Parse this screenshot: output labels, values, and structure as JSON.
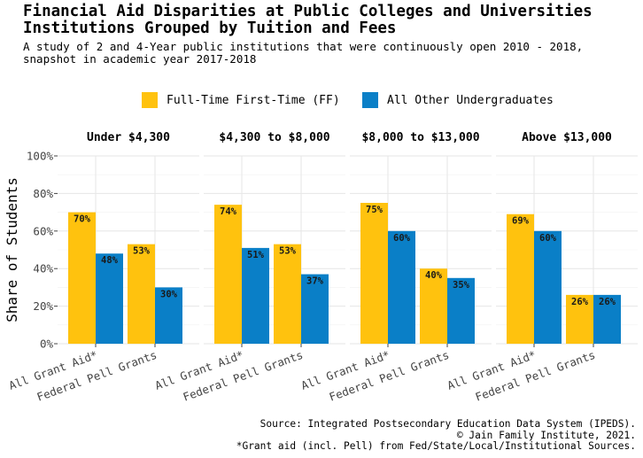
{
  "chart_data": {
    "type": "bar",
    "title_lines": [
      "Financial Aid Disparities at Public Colleges and Universities",
      "Institutions Grouped by Tuition and Fees"
    ],
    "subtitle_lines": [
      "A study of 2 and 4-Year public institutions that were continuously open 2010 - 2018,",
      "snapshot in academic year 2017-2018"
    ],
    "ylabel": "Share of Students",
    "xlabel": "",
    "ylim": [
      0,
      100
    ],
    "y_ticks": [
      0,
      20,
      40,
      60,
      80,
      100
    ],
    "y_tick_labels": [
      "0%",
      "20%",
      "40%",
      "60%",
      "80%",
      "100%"
    ],
    "grid": true,
    "legend_position": "top",
    "categories": [
      "All Grant Aid*",
      "Federal Pell Grants"
    ],
    "series_meta": [
      {
        "name": "Full-Time First-Time (FF)",
        "color": "#FFC20E"
      },
      {
        "name": "All Other Undergraduates",
        "color": "#0A7FC7"
      }
    ],
    "facets": [
      {
        "label": "Under $4,300",
        "values": {
          "ff": [
            70,
            53
          ],
          "other": [
            48,
            30
          ]
        },
        "value_labels": {
          "ff": [
            "70%",
            "53%"
          ],
          "other": [
            "48%",
            "30%"
          ]
        }
      },
      {
        "label": "$4,300 to $8,000",
        "values": {
          "ff": [
            74,
            53
          ],
          "other": [
            51,
            37
          ]
        },
        "value_labels": {
          "ff": [
            "74%",
            "53%"
          ],
          "other": [
            "51%",
            "37%"
          ]
        }
      },
      {
        "label": "$8,000 to $13,000",
        "values": {
          "ff": [
            75,
            40
          ],
          "other": [
            60,
            35
          ]
        },
        "value_labels": {
          "ff": [
            "75%",
            "40%"
          ],
          "other": [
            "60%",
            "35%"
          ]
        }
      },
      {
        "label": "Above $13,000",
        "values": {
          "ff": [
            69,
            26
          ],
          "other": [
            60,
            26
          ]
        },
        "value_labels": {
          "ff": [
            "69%",
            "26%"
          ],
          "other": [
            "60%",
            "26%"
          ]
        }
      }
    ],
    "caption_lines": [
      "Source: Integrated Postsecondary Education Data System (IPEDS).",
      "© Jain Family Institute, 2021.",
      "*Grant aid (incl. Pell) from Fed/State/Local/Institutional Sources."
    ]
  }
}
